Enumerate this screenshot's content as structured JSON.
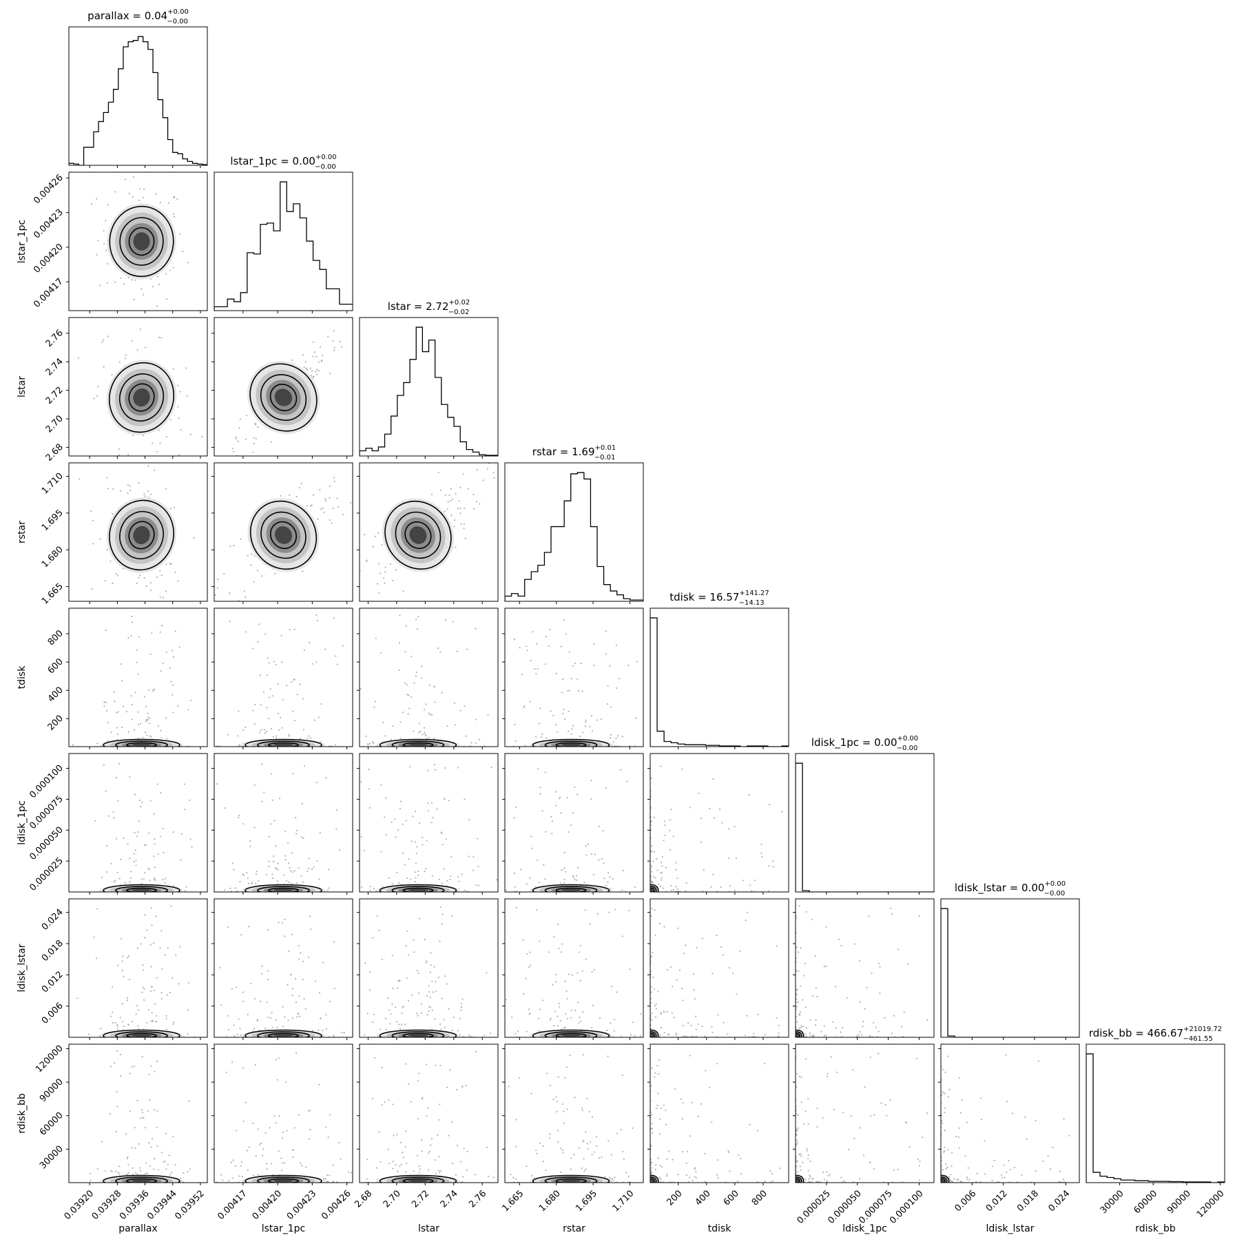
{
  "chart_data": {
    "type": "corner",
    "parameters": [
      {
        "name": "parallax",
        "range": [
          0.03914,
          0.03954
        ],
        "ticks": [
          0.0392,
          0.03928,
          0.03936,
          0.03944,
          0.03952
        ],
        "tick_labels": [
          "0.03920",
          "0.03928",
          "0.03936",
          "0.03944",
          "0.03952"
        ]
      },
      {
        "name": "lstar_1pc",
        "range": [
          0.004145,
          0.004265
        ],
        "ticks": [
          0.00417,
          0.0042,
          0.00423,
          0.00426
        ],
        "tick_labels": [
          "0.00417",
          "0.00420",
          "0.00423",
          "0.00426"
        ]
      },
      {
        "name": "lstar",
        "range": [
          2.674,
          2.771
        ],
        "ticks": [
          2.68,
          2.7,
          2.72,
          2.74,
          2.76
        ],
        "tick_labels": [
          "2.68",
          "2.70",
          "2.72",
          "2.74",
          "2.76"
        ]
      },
      {
        "name": "rstar",
        "range": [
          1.659,
          1.7155
        ],
        "ticks": [
          1.665,
          1.68,
          1.695,
          1.71
        ],
        "tick_labels": [
          "1.665",
          "1.680",
          "1.695",
          "1.710"
        ]
      },
      {
        "name": "tdisk",
        "range": [
          2.4,
          980
        ],
        "ticks": [
          200,
          400,
          600,
          800
        ],
        "tick_labels": [
          "200",
          "400",
          "600",
          "800"
        ]
      },
      {
        "name": "ldisk_1pc",
        "range": [
          0,
          0.000112
        ],
        "ticks": [
          2.5e-05,
          5e-05,
          7.5e-05,
          0.0001
        ],
        "tick_labels": [
          "0.000025",
          "0.000050",
          "0.000075",
          "0.000100"
        ]
      },
      {
        "name": "ldisk_lstar",
        "range": [
          0,
          0.0266
        ],
        "ticks": [
          0.006,
          0.012,
          0.018,
          0.024
        ],
        "tick_labels": [
          "0.006",
          "0.012",
          "0.018",
          "0.024"
        ]
      },
      {
        "name": "rdisk_bb",
        "range": [
          5,
          124000
        ],
        "ticks": [
          30000,
          60000,
          90000,
          120000
        ],
        "tick_labels": [
          "30000",
          "60000",
          "90000",
          "120000"
        ]
      }
    ],
    "titles": [
      {
        "label": "parallax = 0.04",
        "plus": "+0.00",
        "minus": "−0.00"
      },
      {
        "label": "lstar_1pc = 0.00",
        "plus": "+0.00",
        "minus": "−0.00"
      },
      {
        "label": "lstar = 2.72",
        "plus": "+0.02",
        "minus": "−0.02"
      },
      {
        "label": "rstar = 1.69",
        "plus": "+0.01",
        "minus": "−0.01"
      },
      {
        "label": "tdisk = 16.57",
        "plus": "+141.27",
        "minus": "−14.13"
      },
      {
        "label": "ldisk_1pc = 0.00",
        "plus": "+0.00",
        "minus": "−0.00"
      },
      {
        "label": "ldisk_lstar = 0.00",
        "plus": "+0.00",
        "minus": "−0.00"
      },
      {
        "label": "rdisk_bb = 466.67",
        "plus": "+21019.72",
        "minus": "−461.55"
      }
    ],
    "histograms": [
      [
        0.015,
        0.01,
        0.0,
        0.14,
        0.14,
        0.26,
        0.34,
        0.41,
        0.49,
        0.59,
        0.75,
        0.92,
        0.96,
        0.97,
        1.0,
        0.96,
        0.9,
        0.72,
        0.51,
        0.37,
        0.2,
        0.1,
        0.09,
        0.05,
        0.03,
        0.015,
        0.01,
        0.005
      ],
      [
        0.03,
        0.03,
        0.09,
        0.07,
        0.14,
        0.45,
        0.44,
        0.67,
        0.68,
        0.62,
        1.0,
        0.77,
        0.83,
        0.72,
        0.54,
        0.39,
        0.32,
        0.17,
        0.17,
        0.05,
        0.05
      ],
      [
        0.04,
        0.06,
        0.04,
        0.07,
        0.17,
        0.31,
        0.47,
        0.57,
        0.75,
        1.0,
        0.81,
        0.9,
        0.61,
        0.4,
        0.3,
        0.23,
        0.11,
        0.05,
        0.03,
        0.01,
        0.005,
        0.005
      ],
      [
        0.04,
        0.06,
        0.04,
        0.17,
        0.23,
        0.28,
        0.38,
        0.58,
        0.58,
        0.78,
        0.99,
        1.0,
        0.95,
        0.58,
        0.27,
        0.13,
        0.08,
        0.05,
        0.02,
        0.01,
        0.01
      ],
      [
        1.0,
        0.12,
        0.04,
        0.03,
        0.02,
        0.015,
        0.015,
        0.015,
        0.01,
        0.01,
        0.005,
        0.005,
        0.005,
        0.0,
        0.005,
        0.005,
        0.005,
        0.0,
        0.0,
        0.005
      ],
      [
        1.0,
        0.01,
        0.0,
        0.0,
        0.0,
        0.0,
        0.0,
        0.0,
        0.0,
        0.0,
        0.0,
        0.0,
        0.0,
        0.0,
        0.0,
        0.0,
        0.0,
        0.0,
        0.0,
        0.0
      ],
      [
        1.0,
        0.01,
        0.0,
        0.0,
        0.0,
        0.0,
        0.0,
        0.0,
        0.0,
        0.0,
        0.0,
        0.0,
        0.0,
        0.0,
        0.0,
        0.0,
        0.0,
        0.0,
        0.0,
        0.0
      ],
      [
        1.0,
        0.08,
        0.05,
        0.04,
        0.03,
        0.02,
        0.02,
        0.015,
        0.015,
        0.01,
        0.01,
        0.01,
        0.008,
        0.008,
        0.005,
        0.005,
        0.005,
        0.005,
        0.0,
        0.005
      ]
    ],
    "centers": [
      0.03935,
      0.004205,
      2.715,
      1.686,
      16.57,
      2e-06,
      0.0004,
      466.67
    ],
    "spreads": [
      4.5e-05,
      1.95e-05,
      0.016,
      0.009,
      60,
      8e-07,
      0.00018,
      8000
    ],
    "correlations": {
      "1,0": -0.05,
      "2,0": -0.35,
      "2,1": 0.92,
      "3,0": -0.3,
      "3,1": 0.7,
      "3,2": 0.75
    },
    "heavy_tailed": [
      4,
      5,
      6,
      7
    ],
    "grid": false,
    "legend": "none"
  }
}
